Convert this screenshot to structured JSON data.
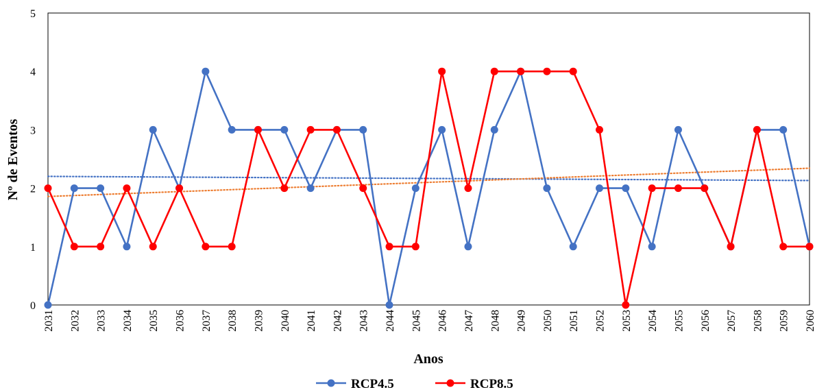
{
  "chart_data": {
    "type": "line",
    "xlabel": "Anos",
    "ylabel": "Nº de Eventos",
    "ylim": [
      0,
      5
    ],
    "yticks": [
      "0",
      "1",
      "2",
      "3",
      "4",
      "5"
    ],
    "categories": [
      "2031",
      "2032",
      "2033",
      "2034",
      "2035",
      "2036",
      "2037",
      "2038",
      "2039",
      "2040",
      "2041",
      "2042",
      "2043",
      "2044",
      "2045",
      "2046",
      "2047",
      "2048",
      "2049",
      "2050",
      "2051",
      "2052",
      "2053",
      "2054",
      "2055",
      "2056",
      "2057",
      "2058",
      "2059",
      "2060"
    ],
    "series": [
      {
        "name": "RCP4.5",
        "color": "#4472C4",
        "values": [
          0,
          2,
          2,
          1,
          3,
          2,
          4,
          3,
          3,
          3,
          2,
          3,
          3,
          0,
          2,
          3,
          1,
          3,
          4,
          2,
          1,
          2,
          2,
          1,
          3,
          2,
          1,
          3,
          3,
          1
        ],
        "trendline": {
          "color": "#4472C4",
          "style": "dotted"
        }
      },
      {
        "name": "RCP8.5",
        "color": "#FF0000",
        "values": [
          2,
          1,
          1,
          2,
          1,
          2,
          1,
          1,
          3,
          2,
          3,
          3,
          2,
          1,
          1,
          4,
          2,
          4,
          4,
          4,
          4,
          3,
          0,
          2,
          2,
          2,
          1,
          3,
          1,
          1
        ],
        "trendline": {
          "color": "#ED7D31",
          "style": "dotted"
        }
      }
    ],
    "legend_position": "bottom-center",
    "grid": false
  }
}
